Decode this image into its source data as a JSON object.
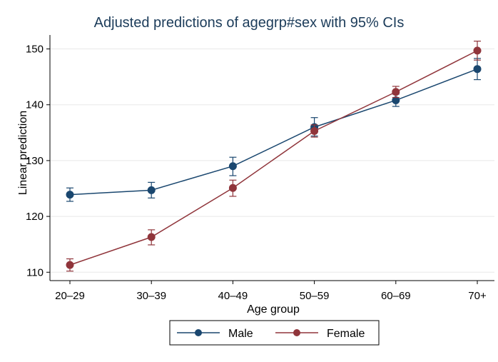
{
  "chart_data": {
    "type": "line",
    "title": "Adjusted predictions of agegrp#sex with 95% CIs",
    "xlabel": "Age group",
    "ylabel": "Linear prediction",
    "categories": [
      "20–29",
      "30–39",
      "40–49",
      "50–59",
      "60–69",
      "70+"
    ],
    "ylim": [
      108.5,
      152.5
    ],
    "yticks": [
      110,
      120,
      130,
      140,
      150
    ],
    "grid": true,
    "legend_position": "bottom",
    "series": [
      {
        "name": "Male",
        "color": "#1a476f",
        "values": [
          123.9,
          124.7,
          129.0,
          136.0,
          140.8,
          146.4
        ],
        "ci_low": [
          122.7,
          123.3,
          127.3,
          134.4,
          139.7,
          144.5
        ],
        "ci_high": [
          125.1,
          126.1,
          130.6,
          137.7,
          141.9,
          148.3
        ]
      },
      {
        "name": "Female",
        "color": "#90353b",
        "values": [
          111.3,
          116.3,
          125.1,
          135.3,
          142.3,
          149.7
        ],
        "ci_low": [
          110.2,
          114.9,
          123.6,
          134.2,
          141.3,
          148.0
        ],
        "ci_high": [
          112.4,
          117.6,
          126.5,
          136.4,
          143.3,
          151.4
        ]
      }
    ]
  }
}
